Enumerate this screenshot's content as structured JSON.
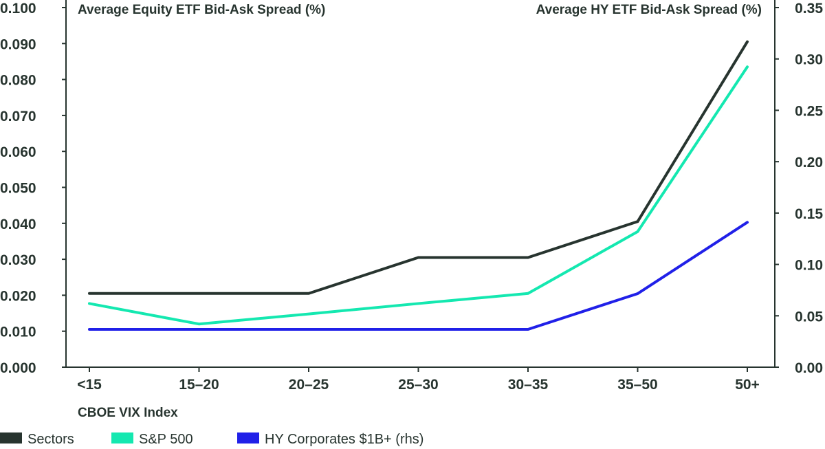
{
  "chart_data": {
    "type": "line",
    "left_title": "Average Equity ETF Bid-Ask Spread (%)",
    "right_title": "Average HY ETF Bid-Ask Spread (%)",
    "xlabel": "CBOE VIX Index",
    "categories": [
      "<15",
      "15-20",
      "20-25",
      "25-30",
      "30-35",
      "35-50",
      "50+"
    ],
    "ylim_left": [
      0,
      0.1
    ],
    "ylim_right": [
      0,
      0.35
    ],
    "yticks_left": [
      "0.000",
      "0.010",
      "0.020",
      "0.030",
      "0.040",
      "0.050",
      "0.060",
      "0.070",
      "0.080",
      "0.090",
      "0.100"
    ],
    "yticks_right": [
      "0.00",
      "0.05",
      "0.10",
      "0.15",
      "0.20",
      "0.25",
      "0.30",
      "0.35"
    ],
    "series": [
      {
        "name": "Sectors",
        "axis": "left",
        "color": "#27342f",
        "values": [
          0.0205,
          0.0205,
          0.0205,
          0.0305,
          0.0305,
          0.0405,
          0.0905
        ]
      },
      {
        "name": "S&P 500",
        "axis": "left",
        "color": "#14e8b0",
        "values": [
          0.0177,
          0.012,
          0.0148,
          0.0177,
          0.0205,
          0.0377,
          0.0835
        ]
      },
      {
        "name": "HY Corporates $1B+ (rhs)",
        "axis": "right",
        "color": "#2020e8",
        "values": [
          0.0368,
          0.0368,
          0.0368,
          0.0368,
          0.0368,
          0.0716,
          0.141
        ]
      }
    ],
    "legend": "bottom-left"
  }
}
